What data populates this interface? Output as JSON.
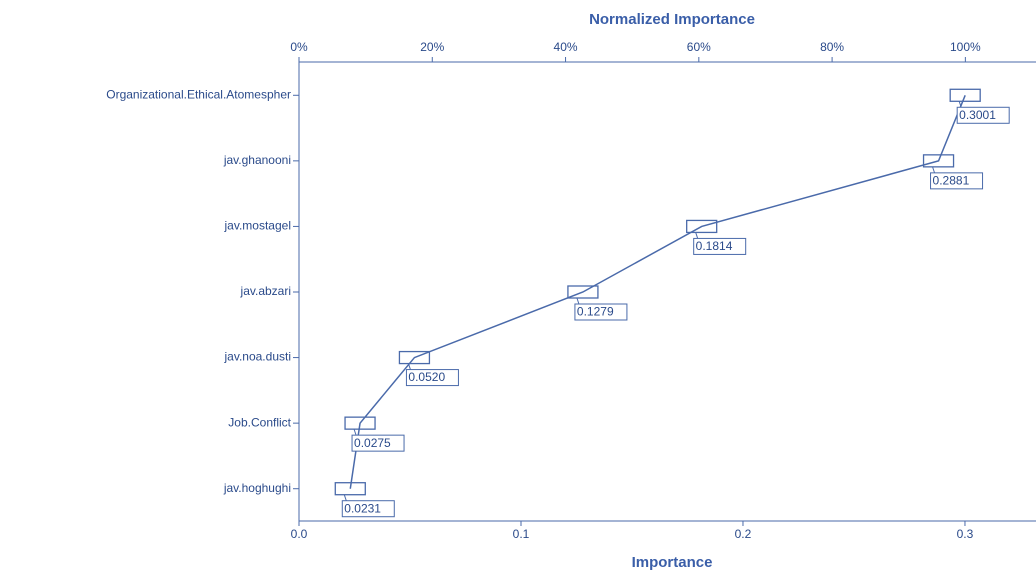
{
  "chart_data": {
    "type": "line",
    "top_axis_title": "Normalized Importance",
    "x_axis_title": "Importance",
    "categories": [
      "Organizational.Ethical.Atomespher",
      "jav.ghanooni",
      "jav.mostagel",
      "jav.abzari",
      "jav.noa.dusti",
      "Job.Conflict",
      "jav.hoghughi"
    ],
    "values": [
      0.3001,
      0.2881,
      0.1814,
      0.1279,
      0.052,
      0.0275,
      0.0231
    ],
    "value_labels": [
      "0.3001",
      "0.2881",
      "0.1814",
      "0.1279",
      "0.0520",
      "0.0275",
      "0.0231"
    ],
    "color": "#4a6aaa",
    "xlim": [
      0,
      0.332
    ],
    "xticks": [
      {
        "value": 0,
        "label": "0.0"
      },
      0.1,
      0.2,
      0.3
    ],
    "x2lim": [
      0,
      110.6
    ],
    "x2ticks": [
      {
        "value": 0,
        "label": "0%"
      },
      {
        "value": 20,
        "label": "20%"
      },
      {
        "value": 40,
        "label": "40%"
      },
      {
        "value": 60,
        "label": "60%"
      },
      {
        "value": 80,
        "label": "80%"
      },
      {
        "value": 100,
        "label": "100%"
      }
    ]
  }
}
